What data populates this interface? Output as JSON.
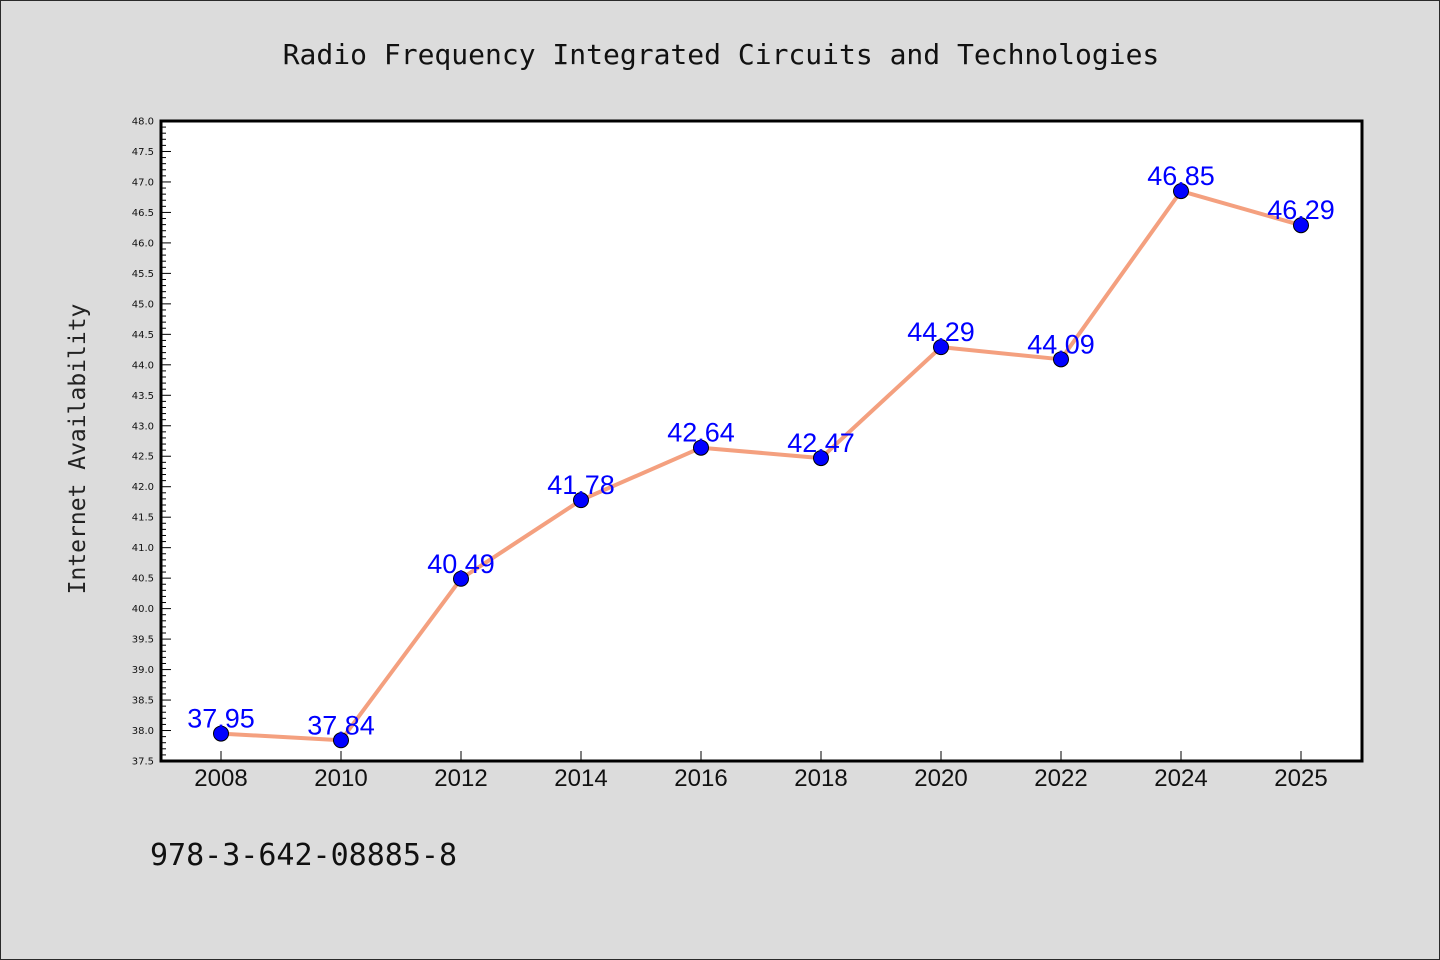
{
  "footer_text": "978-3-642-08885-8",
  "colors": {
    "background": "#dcdcdc",
    "plot_background": "#ffffff",
    "line": "#f4a07f",
    "marker": "#0000ff",
    "data_label": "#0000ff"
  },
  "chart_data": {
    "type": "line",
    "title": "Radio Frequency Integrated Circuits and Technologies",
    "xlabel": "",
    "ylabel": "Internet Availability",
    "categories": [
      "2008",
      "2010",
      "2012",
      "2014",
      "2016",
      "2018",
      "2020",
      "2022",
      "2024",
      "2025"
    ],
    "values": [
      37.95,
      37.84,
      40.49,
      41.78,
      42.64,
      42.47,
      44.29,
      44.09,
      46.85,
      46.29
    ],
    "data_labels": [
      "37.95",
      "37.84",
      "40.49",
      "41.78",
      "42.64",
      "42.47",
      "44.29",
      "44.09",
      "46.85",
      "46.29"
    ],
    "ylim": [
      37.5,
      48.0
    ],
    "y_ticks": [
      "37.5",
      "38.0",
      "38.5",
      "39.0",
      "39.5",
      "40.0",
      "40.5",
      "41.0",
      "41.5",
      "42.0",
      "42.5",
      "43.0",
      "43.5",
      "44.0",
      "44.5",
      "45.0",
      "45.5",
      "46.0",
      "46.5",
      "47.0",
      "47.5",
      "48.0"
    ],
    "grid": false,
    "legend": "none"
  }
}
